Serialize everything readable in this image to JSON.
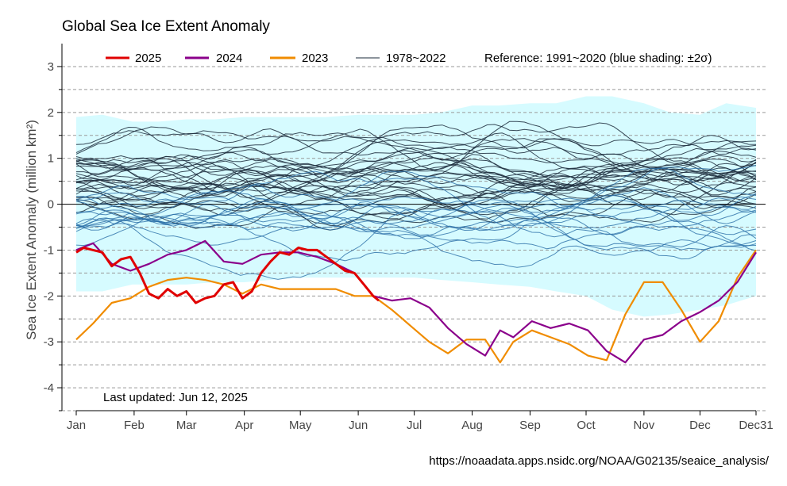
{
  "chart_data": {
    "type": "line",
    "title": "Global Sea Ice Extent Anomaly",
    "ylabel": "Sea Ice Extent Anomaly  (million  km²)",
    "xlabel": "",
    "x_ticks": [
      "Jan",
      "Feb",
      "Mar",
      "Apr",
      "May",
      "Jun",
      "Jul",
      "Aug",
      "Sep",
      "Oct",
      "Nov",
      "Dec",
      "Dec31"
    ],
    "y_ticks": [
      "3",
      "2",
      "1",
      "0",
      "-1",
      "-2",
      "-3",
      "-4"
    ],
    "ylim": [
      -4.5,
      3.5
    ],
    "xlim_day_of_year": [
      1,
      365
    ],
    "grid": "horizontal dashed every 0.5",
    "legend": {
      "placement": "top",
      "entries": [
        {
          "label": "2025",
          "color": "#e00000"
        },
        {
          "label": "2024",
          "color": "#8b008b"
        },
        {
          "label": "2023",
          "color": "#f08c00"
        },
        {
          "label": "1978~2022",
          "color": "#1a2a3a"
        }
      ],
      "reference_text": "Reference: 1991~2020 (blue shading: ±2σ)"
    },
    "reference_band": {
      "color": "#d6fbff",
      "day": [
        1,
        15,
        31,
        45,
        60,
        75,
        91,
        105,
        121,
        135,
        152,
        165,
        182,
        196,
        213,
        227,
        244,
        258,
        274,
        288,
        305,
        319,
        335,
        349,
        365
      ],
      "upper": [
        1.9,
        1.95,
        1.8,
        1.8,
        1.85,
        1.85,
        1.9,
        1.9,
        1.9,
        1.9,
        1.95,
        1.95,
        1.95,
        2.0,
        2.15,
        2.15,
        2.2,
        2.2,
        2.35,
        2.35,
        2.2,
        2.0,
        1.95,
        2.2,
        2.1
      ],
      "lower": [
        -1.9,
        -1.9,
        -1.75,
        -1.75,
        -1.75,
        -1.7,
        -1.7,
        -1.65,
        -1.6,
        -1.6,
        -1.6,
        -1.6,
        -1.6,
        -1.65,
        -1.7,
        -1.75,
        -1.8,
        -1.9,
        -2.0,
        -2.3,
        -2.45,
        -2.4,
        -2.3,
        -2.2,
        -2.0
      ]
    },
    "series": [
      {
        "name": "2025",
        "color": "#e00000",
        "day": [
          1,
          5,
          10,
          15,
          20,
          25,
          30,
          35,
          40,
          45,
          50,
          55,
          60,
          65,
          70,
          75,
          80,
          85,
          90,
          95,
          100,
          105,
          110,
          115,
          120,
          125,
          130,
          135,
          140,
          145,
          150,
          155,
          160,
          163
        ],
        "values": [
          -1.05,
          -0.95,
          -1.0,
          -1.05,
          -1.35,
          -1.2,
          -1.15,
          -1.5,
          -1.95,
          -2.05,
          -1.85,
          -2.0,
          -1.9,
          -2.15,
          -2.05,
          -2.0,
          -1.75,
          -1.7,
          -2.05,
          -1.9,
          -1.5,
          -1.25,
          -1.05,
          -1.1,
          -0.95,
          -1.0,
          -1.0,
          -1.15,
          -1.3,
          -1.45,
          -1.5,
          -1.75,
          -2.0,
          -2.1
        ]
      },
      {
        "name": "2024",
        "color": "#8b008b",
        "day": [
          1,
          10,
          20,
          30,
          40,
          50,
          60,
          70,
          80,
          90,
          100,
          110,
          120,
          130,
          140,
          150,
          160,
          170,
          180,
          190,
          200,
          210,
          220,
          228,
          235,
          245,
          255,
          265,
          275,
          285,
          295,
          305,
          315,
          325,
          335,
          345,
          355,
          365
        ],
        "values": [
          -1.0,
          -0.85,
          -1.3,
          -1.45,
          -1.3,
          -1.1,
          -1.0,
          -0.8,
          -1.25,
          -1.3,
          -1.1,
          -1.05,
          -1.05,
          -1.15,
          -1.3,
          -1.5,
          -2.0,
          -2.1,
          -2.05,
          -2.25,
          -2.7,
          -3.05,
          -3.3,
          -2.75,
          -2.9,
          -2.55,
          -2.7,
          -2.6,
          -2.75,
          -3.2,
          -3.45,
          -2.95,
          -2.85,
          -2.55,
          -2.35,
          -2.1,
          -1.7,
          -1.05
        ]
      },
      {
        "name": "2023",
        "color": "#f08c00",
        "day": [
          1,
          10,
          20,
          30,
          40,
          50,
          60,
          70,
          80,
          90,
          100,
          110,
          120,
          130,
          140,
          150,
          160,
          170,
          180,
          190,
          200,
          210,
          220,
          228,
          235,
          245,
          255,
          265,
          275,
          285,
          295,
          305,
          315,
          325,
          335,
          345,
          355,
          365
        ],
        "values": [
          -2.95,
          -2.6,
          -2.15,
          -2.05,
          -1.8,
          -1.65,
          -1.6,
          -1.65,
          -1.75,
          -1.95,
          -1.75,
          -1.85,
          -1.85,
          -1.85,
          -1.85,
          -2.0,
          -2.0,
          -2.3,
          -2.65,
          -3.0,
          -3.25,
          -2.95,
          -2.95,
          -3.45,
          -3.0,
          -2.75,
          -2.9,
          -3.05,
          -3.3,
          -3.4,
          -2.4,
          -1.7,
          -1.7,
          -2.3,
          -3.0,
          -2.55,
          -1.6,
          -1.0
        ]
      }
    ],
    "historical_years": "1978~2022",
    "annotation": "Last updated: Jun 12, 2025",
    "source": "https://noaadata.apps.nsidc.org/NOAA/G02135/seaice_analysis/"
  },
  "colors": {
    "historical_dark": "#1c2c3c",
    "historical_light": "#2a6fa8",
    "band": "#d6fbff",
    "grid": "#999999",
    "zero_line": "#000000"
  }
}
